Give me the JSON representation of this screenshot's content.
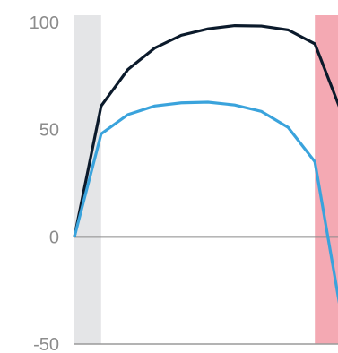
{
  "chart_data": {
    "type": "line",
    "x": [
      0,
      1,
      2,
      3,
      4,
      5,
      6,
      7,
      8,
      9,
      10
    ],
    "series": [
      {
        "values": [
          0,
          61,
          78,
          88,
          94,
          97,
          98.5,
          98.3,
          96.5,
          90,
          58
        ],
        "color": "#0b1a2b"
      },
      {
        "values": [
          0,
          48,
          57,
          61,
          62.5,
          62.8,
          61.5,
          58.5,
          51,
          35,
          -37
        ],
        "color": "#3aa3dc"
      }
    ],
    "ylim": [
      -50,
      100
    ],
    "xlim": [
      0,
      10
    ],
    "y_ticks": [
      "100",
      "50",
      "0",
      "-50"
    ],
    "y_tick_values": [
      100,
      50,
      0,
      -50
    ],
    "shaded_regions": [
      {
        "x_start": 0,
        "x_end": 1,
        "color": "#e4e5e7"
      },
      {
        "x_start": 9,
        "x_end": 10,
        "color": "#f4a9b3"
      }
    ],
    "zero_line": true,
    "grid": false,
    "title": "",
    "xlabel": "",
    "ylabel": ""
  }
}
